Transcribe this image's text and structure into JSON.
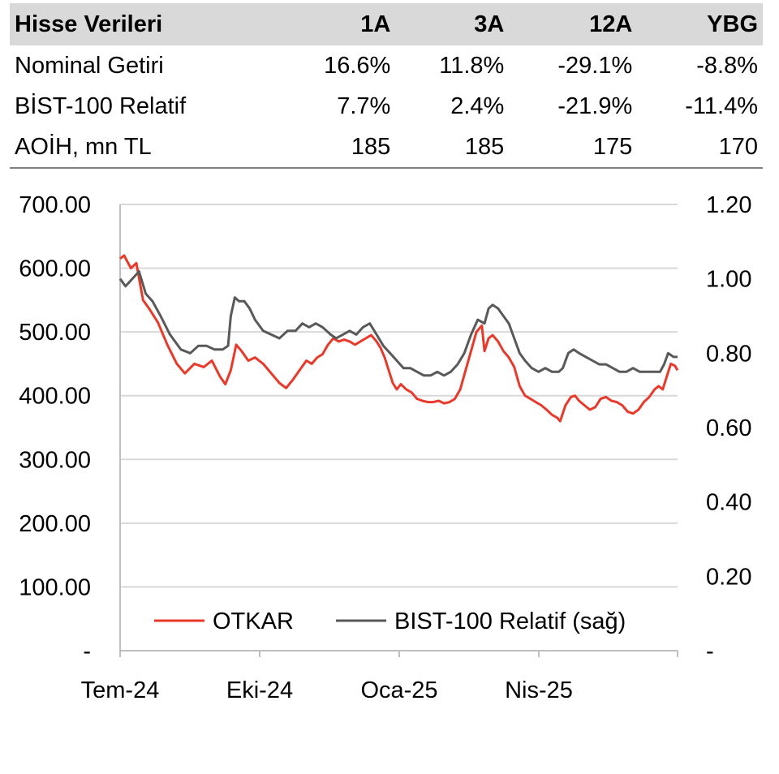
{
  "table": {
    "headers": [
      "Hisse Verileri",
      "1A",
      "3A",
      "12A",
      "YBG"
    ],
    "rows": [
      [
        "Nominal Getiri",
        "16.6%",
        "11.8%",
        "-29.1%",
        "-8.8%"
      ],
      [
        "BİST-100 Relatif",
        "7.7%",
        "2.4%",
        "-21.9%",
        "-11.4%"
      ],
      [
        "AOİH, mn TL",
        "185",
        "185",
        "175",
        "170"
      ]
    ]
  },
  "chart_data": {
    "type": "line",
    "x_tick_labels": [
      "Tem-24",
      "Eki-24",
      "Oca-25",
      "Nis-25"
    ],
    "y_left": {
      "range": [
        0,
        700
      ],
      "tick_labels": [
        "-",
        "100.00",
        "200.00",
        "300.00",
        "400.00",
        "500.00",
        "600.00",
        "700.00"
      ]
    },
    "y_right": {
      "range": [
        0,
        1.2
      ],
      "tick_labels": [
        "-",
        "0.20",
        "0.40",
        "0.60",
        "0.80",
        "1.00",
        "1.20"
      ]
    },
    "grid": "horizontal",
    "legend_position": "bottom",
    "series": [
      {
        "name": "OTKAR",
        "axis": "left",
        "color": "#e8392a",
        "points": [
          [
            0,
            615
          ],
          [
            3,
            620
          ],
          [
            8,
            600
          ],
          [
            12,
            608
          ],
          [
            17,
            550
          ],
          [
            22,
            535
          ],
          [
            28,
            515
          ],
          [
            35,
            480
          ],
          [
            42,
            450
          ],
          [
            48,
            435
          ],
          [
            55,
            450
          ],
          [
            62,
            445
          ],
          [
            68,
            455
          ],
          [
            74,
            430
          ],
          [
            78,
            418
          ],
          [
            82,
            440
          ],
          [
            86,
            480
          ],
          [
            90,
            470
          ],
          [
            95,
            455
          ],
          [
            100,
            460
          ],
          [
            106,
            450
          ],
          [
            112,
            435
          ],
          [
            118,
            420
          ],
          [
            123,
            412
          ],
          [
            128,
            425
          ],
          [
            133,
            440
          ],
          [
            138,
            455
          ],
          [
            142,
            450
          ],
          [
            146,
            460
          ],
          [
            150,
            465
          ],
          [
            154,
            480
          ],
          [
            158,
            490
          ],
          [
            162,
            485
          ],
          [
            166,
            488
          ],
          [
            170,
            485
          ],
          [
            174,
            480
          ],
          [
            178,
            485
          ],
          [
            182,
            490
          ],
          [
            186,
            495
          ],
          [
            190,
            485
          ],
          [
            193,
            475
          ],
          [
            196,
            460
          ],
          [
            199,
            440
          ],
          [
            202,
            420
          ],
          [
            205,
            410
          ],
          [
            208,
            418
          ],
          [
            212,
            410
          ],
          [
            216,
            405
          ],
          [
            220,
            395
          ],
          [
            224,
            392
          ],
          [
            228,
            390
          ],
          [
            232,
            390
          ],
          [
            236,
            392
          ],
          [
            240,
            388
          ],
          [
            244,
            390
          ],
          [
            248,
            395
          ],
          [
            252,
            410
          ],
          [
            256,
            440
          ],
          [
            260,
            470
          ],
          [
            264,
            500
          ],
          [
            268,
            510
          ],
          [
            270,
            470
          ],
          [
            273,
            490
          ],
          [
            276,
            495
          ],
          [
            280,
            485
          ],
          [
            284,
            470
          ],
          [
            288,
            460
          ],
          [
            292,
            445
          ],
          [
            296,
            415
          ],
          [
            300,
            400
          ],
          [
            304,
            395
          ],
          [
            308,
            390
          ],
          [
            312,
            385
          ],
          [
            316,
            378
          ],
          [
            320,
            370
          ],
          [
            324,
            365
          ],
          [
            326,
            360
          ],
          [
            330,
            385
          ],
          [
            334,
            398
          ],
          [
            337,
            400
          ],
          [
            340,
            392
          ],
          [
            344,
            385
          ],
          [
            348,
            378
          ],
          [
            352,
            382
          ],
          [
            356,
            395
          ],
          [
            360,
            398
          ],
          [
            364,
            392
          ],
          [
            368,
            390
          ],
          [
            372,
            385
          ],
          [
            376,
            375
          ],
          [
            380,
            372
          ],
          [
            384,
            378
          ],
          [
            388,
            390
          ],
          [
            392,
            398
          ],
          [
            396,
            410
          ],
          [
            399,
            415
          ],
          [
            402,
            410
          ],
          [
            405,
            430
          ],
          [
            408,
            450
          ],
          [
            411,
            447
          ],
          [
            413,
            440
          ]
        ]
      },
      {
        "name": "BIST-100 Relatif (sağ)",
        "axis": "right",
        "color": "#595959",
        "points": [
          [
            0,
            1.0
          ],
          [
            4,
            0.98
          ],
          [
            9,
            1.0
          ],
          [
            14,
            1.02
          ],
          [
            19,
            0.96
          ],
          [
            24,
            0.94
          ],
          [
            30,
            0.9
          ],
          [
            37,
            0.85
          ],
          [
            45,
            0.81
          ],
          [
            52,
            0.8
          ],
          [
            58,
            0.82
          ],
          [
            64,
            0.82
          ],
          [
            70,
            0.81
          ],
          [
            76,
            0.81
          ],
          [
            80,
            0.82
          ],
          [
            82,
            0.9
          ],
          [
            85,
            0.95
          ],
          [
            88,
            0.94
          ],
          [
            92,
            0.94
          ],
          [
            96,
            0.92
          ],
          [
            100,
            0.89
          ],
          [
            106,
            0.86
          ],
          [
            112,
            0.85
          ],
          [
            118,
            0.84
          ],
          [
            124,
            0.86
          ],
          [
            130,
            0.86
          ],
          [
            135,
            0.88
          ],
          [
            140,
            0.87
          ],
          [
            145,
            0.88
          ],
          [
            150,
            0.87
          ],
          [
            156,
            0.85
          ],
          [
            160,
            0.84
          ],
          [
            165,
            0.85
          ],
          [
            170,
            0.86
          ],
          [
            175,
            0.85
          ],
          [
            180,
            0.87
          ],
          [
            185,
            0.88
          ],
          [
            190,
            0.85
          ],
          [
            195,
            0.82
          ],
          [
            200,
            0.8
          ],
          [
            205,
            0.78
          ],
          [
            210,
            0.76
          ],
          [
            215,
            0.76
          ],
          [
            220,
            0.75
          ],
          [
            225,
            0.74
          ],
          [
            230,
            0.74
          ],
          [
            235,
            0.75
          ],
          [
            240,
            0.74
          ],
          [
            245,
            0.75
          ],
          [
            250,
            0.77
          ],
          [
            255,
            0.8
          ],
          [
            260,
            0.85
          ],
          [
            265,
            0.89
          ],
          [
            270,
            0.88
          ],
          [
            273,
            0.92
          ],
          [
            276,
            0.93
          ],
          [
            280,
            0.92
          ],
          [
            284,
            0.9
          ],
          [
            288,
            0.88
          ],
          [
            292,
            0.84
          ],
          [
            296,
            0.8
          ],
          [
            300,
            0.78
          ],
          [
            305,
            0.76
          ],
          [
            310,
            0.75
          ],
          [
            315,
            0.76
          ],
          [
            320,
            0.75
          ],
          [
            325,
            0.75
          ],
          [
            328,
            0.76
          ],
          [
            332,
            0.8
          ],
          [
            336,
            0.81
          ],
          [
            340,
            0.8
          ],
          [
            345,
            0.79
          ],
          [
            350,
            0.78
          ],
          [
            355,
            0.77
          ],
          [
            360,
            0.77
          ],
          [
            365,
            0.76
          ],
          [
            370,
            0.75
          ],
          [
            375,
            0.75
          ],
          [
            380,
            0.76
          ],
          [
            385,
            0.75
          ],
          [
            390,
            0.75
          ],
          [
            395,
            0.75
          ],
          [
            400,
            0.75
          ],
          [
            403,
            0.77
          ],
          [
            406,
            0.8
          ],
          [
            410,
            0.79
          ],
          [
            413,
            0.79
          ]
        ]
      }
    ]
  }
}
